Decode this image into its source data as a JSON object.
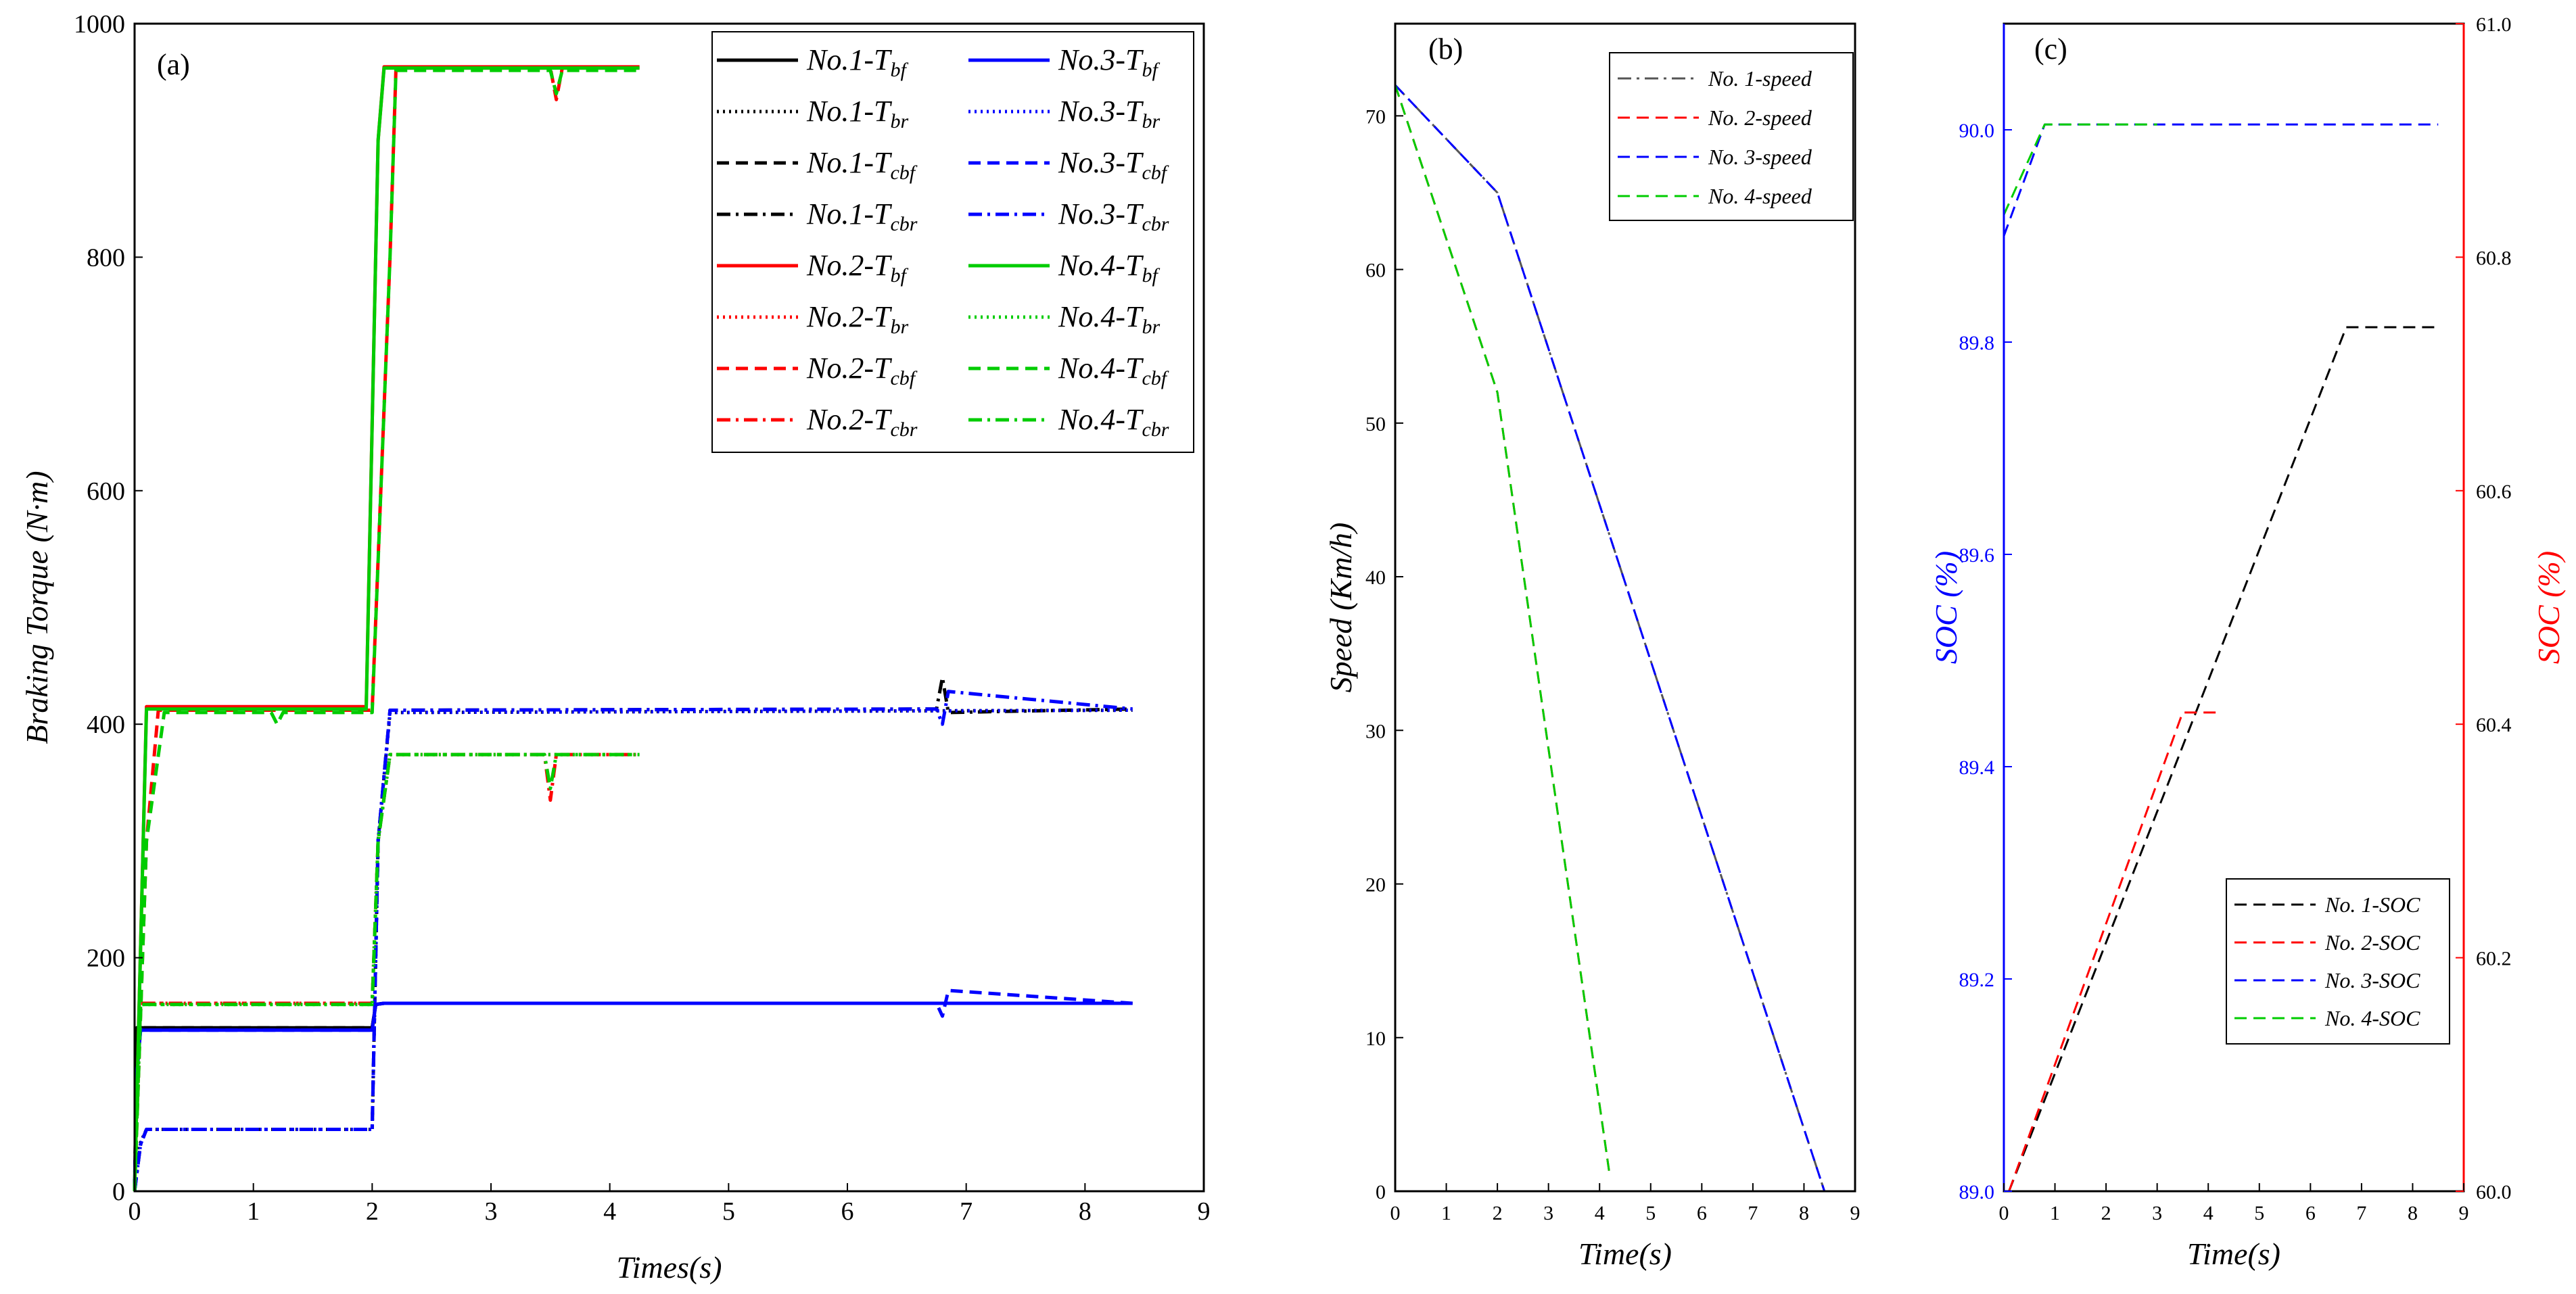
{
  "chart_data": [
    {
      "panel": "a",
      "type": "line",
      "panel_label": "(a)",
      "xlabel": "Times(s)",
      "ylabel": "Braking Torque (N·m)",
      "xlim": [
        0,
        9
      ],
      "ylim": [
        0,
        1000
      ],
      "xticks": [
        0,
        1,
        2,
        3,
        4,
        5,
        6,
        7,
        8,
        9
      ],
      "yticks": [
        0,
        200,
        400,
        600,
        800,
        1000
      ],
      "legend_position": "top-right",
      "series": [
        {
          "name": "No.1-Tbf",
          "legend_main": "No.1-T",
          "legend_sub": "bf",
          "color": "#000000",
          "dash": "solid",
          "x": [
            0,
            0.02,
            2.0,
            2.03,
            2.1,
            8.4
          ],
          "y": [
            0,
            140,
            140,
            160,
            161,
            161
          ]
        },
        {
          "name": "No.1-Tbr",
          "legend_main": "No.1-T",
          "legend_sub": "br",
          "color": "#000000",
          "dash": "dot",
          "x": [
            0,
            0.02,
            0.1,
            2.0,
            2.05,
            2.15,
            8.4
          ],
          "y": [
            0,
            35,
            53,
            53,
            300,
            410,
            412
          ]
        },
        {
          "name": "No.1-Tcbf",
          "legend_main": "No.1-T",
          "legend_sub": "cbf",
          "color": "#000000",
          "dash": "dash",
          "x": [
            0,
            0.02,
            2.0,
            2.03,
            2.1,
            8.4
          ],
          "y": [
            0,
            140,
            140,
            160,
            161,
            161
          ]
        },
        {
          "name": "No.1-Tcbr",
          "legend_main": "No.1-T",
          "legend_sub": "cbr",
          "color": "#000000",
          "dash": "dashdot",
          "x": [
            0,
            0.05,
            0.1,
            2.0,
            2.05,
            2.15,
            6.75,
            6.8,
            6.85,
            8.4
          ],
          "y": [
            0,
            40,
            53,
            53,
            300,
            412,
            413,
            440,
            410,
            413
          ]
        },
        {
          "name": "No.2-Tbf",
          "legend_main": "No.2-T",
          "legend_sub": "bf",
          "color": "#ff0000",
          "dash": "solid",
          "x": [
            0,
            0.1,
            1.95,
            2.05,
            2.1,
            4.25
          ],
          "y": [
            0,
            415,
            415,
            900,
            963,
            963
          ]
        },
        {
          "name": "No.2-Tbr",
          "legend_main": "No.2-T",
          "legend_sub": "br",
          "color": "#ff0000",
          "dash": "dot",
          "x": [
            0,
            0.05,
            2.0,
            2.05,
            2.15,
            4.25
          ],
          "y": [
            0,
            161,
            161,
            300,
            374,
            374
          ]
        },
        {
          "name": "No.2-Tcbf",
          "legend_main": "No.2-T",
          "legend_sub": "cbf",
          "color": "#ff0000",
          "dash": "dash",
          "x": [
            0,
            0.1,
            0.2,
            2.0,
            2.15,
            2.2,
            3.5,
            3.55,
            3.6,
            4.25
          ],
          "y": [
            0,
            300,
            412,
            412,
            800,
            962,
            962,
            935,
            962,
            962
          ]
        },
        {
          "name": "No.2-Tcbr",
          "legend_main": "No.2-T",
          "legend_sub": "cbr",
          "color": "#ff0000",
          "dash": "dashdot",
          "x": [
            0,
            0.05,
            2.0,
            2.05,
            2.15,
            3.45,
            3.5,
            3.55,
            4.25
          ],
          "y": [
            0,
            161,
            161,
            300,
            374,
            374,
            335,
            374,
            374
          ]
        },
        {
          "name": "No.3-Tbf",
          "legend_main": "No.3-T",
          "legend_sub": "bf",
          "color": "#0000ff",
          "dash": "solid",
          "x": [
            0,
            0.02,
            0.05,
            2.0,
            2.03,
            2.1,
            8.4
          ],
          "y": [
            0,
            100,
            138,
            138,
            160,
            161,
            161
          ]
        },
        {
          "name": "No.3-Tbr",
          "legend_main": "No.3-T",
          "legend_sub": "br",
          "color": "#0000ff",
          "dash": "dot",
          "x": [
            0,
            0.05,
            0.1,
            2.0,
            2.05,
            2.15,
            8.4
          ],
          "y": [
            0,
            40,
            53,
            53,
            300,
            410,
            412
          ]
        },
        {
          "name": "No.3-Tcbf",
          "legend_main": "No.3-T",
          "legend_sub": "cbf",
          "color": "#0000ff",
          "dash": "dash",
          "x": [
            0,
            0.02,
            0.05,
            2.0,
            2.03,
            2.1,
            6.75,
            6.8,
            6.85,
            8.4
          ],
          "y": [
            0,
            100,
            138,
            138,
            160,
            161,
            161,
            150,
            172,
            161
          ]
        },
        {
          "name": "No.3-Tcbr",
          "legend_main": "No.3-T",
          "legend_sub": "cbr",
          "color": "#0000ff",
          "dash": "dashdot",
          "x": [
            0,
            0.05,
            0.1,
            2.0,
            2.05,
            2.15,
            6.75,
            6.8,
            6.85,
            8.4
          ],
          "y": [
            0,
            40,
            53,
            53,
            300,
            412,
            413,
            400,
            428,
            413
          ]
        },
        {
          "name": "No.4-Tbf",
          "legend_main": "No.4-T",
          "legend_sub": "bf",
          "color": "#00cc00",
          "dash": "solid",
          "x": [
            0,
            0.1,
            1.95,
            2.05,
            2.1,
            4.25
          ],
          "y": [
            0,
            413,
            413,
            900,
            962,
            962
          ]
        },
        {
          "name": "No.4-Tbr",
          "legend_main": "No.4-T",
          "legend_sub": "br",
          "color": "#00cc00",
          "dash": "dot",
          "x": [
            0,
            0.05,
            2.0,
            2.05,
            2.15,
            4.25
          ],
          "y": [
            0,
            160,
            160,
            300,
            374,
            374
          ]
        },
        {
          "name": "No.4-Tcbf",
          "legend_main": "No.4-T",
          "legend_sub": "cbf",
          "color": "#00cc00",
          "dash": "dash",
          "x": [
            0,
            0.1,
            0.25,
            1.15,
            1.2,
            1.25,
            2.0,
            2.15,
            2.2,
            3.5,
            3.55,
            3.6,
            4.25
          ],
          "y": [
            0,
            300,
            410,
            410,
            400,
            410,
            410,
            800,
            960,
            960,
            940,
            960,
            960
          ]
        },
        {
          "name": "No.4-Tcbr",
          "legend_main": "No.4-T",
          "legend_sub": "cbr",
          "color": "#00cc00",
          "dash": "dashdot",
          "x": [
            0,
            0.05,
            2.0,
            2.05,
            2.15,
            3.45,
            3.5,
            3.55,
            4.25
          ],
          "y": [
            0,
            160,
            160,
            300,
            374,
            374,
            345,
            374,
            374
          ]
        }
      ]
    },
    {
      "panel": "b",
      "type": "line",
      "panel_label": "(b)",
      "xlabel": "Time(s)",
      "ylabel": "Speed (Km/h)",
      "xlim": [
        0,
        9
      ],
      "ylim": [
        0,
        76
      ],
      "xticks": [
        0,
        1,
        2,
        3,
        4,
        5,
        6,
        7,
        8,
        9
      ],
      "yticks": [
        0,
        10,
        20,
        30,
        40,
        50,
        60,
        70
      ],
      "legend_position": "top-right",
      "series": [
        {
          "name": "No. 1-speed",
          "color": "#555555",
          "dash": "dashdot",
          "x": [
            0,
            2.0,
            8.4
          ],
          "y": [
            72,
            65,
            0
          ]
        },
        {
          "name": "No. 2-speed",
          "color": "#ff0000",
          "dash": "dash",
          "x": [
            0,
            2.0,
            4.2
          ],
          "y": [
            72,
            52,
            1
          ]
        },
        {
          "name": "No. 3-speed",
          "color": "#0000ff",
          "dash": "dash",
          "x": [
            0,
            2.0,
            8.4
          ],
          "y": [
            72,
            65,
            0
          ]
        },
        {
          "name": "No. 4-speed",
          "color": "#00cc00",
          "dash": "dash",
          "x": [
            0,
            2.0,
            4.2
          ],
          "y": [
            72,
            52,
            1
          ]
        }
      ]
    },
    {
      "panel": "c",
      "type": "line",
      "panel_label": "(c)",
      "xlabel": "Time(s)",
      "ylabel_left": "SOC (%)",
      "ylabel_right": "SOC (%)",
      "xlim": [
        0,
        9
      ],
      "ylim_left": [
        89.0,
        90.1
      ],
      "ylim_right": [
        60.0,
        61.0
      ],
      "xticks": [
        0,
        1,
        2,
        3,
        4,
        5,
        6,
        7,
        8,
        9
      ],
      "yticks_left": [
        "89.0",
        "89.2",
        "89.4",
        "89.6",
        "89.8",
        "90.0"
      ],
      "yticks_right": [
        "60.0",
        "60.2",
        "60.4",
        "60.6",
        "60.8",
        "61.0"
      ],
      "legend_position": "bottom-right",
      "series": [
        {
          "name": "No. 1-SOC",
          "color": "#000000",
          "dash": "dash",
          "axis": "right",
          "x": [
            0.1,
            6.7,
            8.5
          ],
          "y": [
            60.0,
            60.74,
            60.74
          ]
        },
        {
          "name": "No. 2-SOC",
          "color": "#ff0000",
          "dash": "dash",
          "axis": "right",
          "x": [
            0.1,
            3.5,
            4.2
          ],
          "y": [
            60.0,
            60.41,
            60.41
          ]
        },
        {
          "name": "No. 3-SOC",
          "color": "#0000ff",
          "dash": "dash",
          "axis": "left",
          "x": [
            0,
            0.8,
            8.5
          ],
          "y": [
            89.9,
            90.005,
            90.005
          ]
        },
        {
          "name": "No. 4-SOC",
          "color": "#00cc00",
          "dash": "dash",
          "axis": "left",
          "x": [
            0,
            0.8,
            3.0
          ],
          "y": [
            89.92,
            90.005,
            90.005
          ]
        }
      ]
    }
  ]
}
